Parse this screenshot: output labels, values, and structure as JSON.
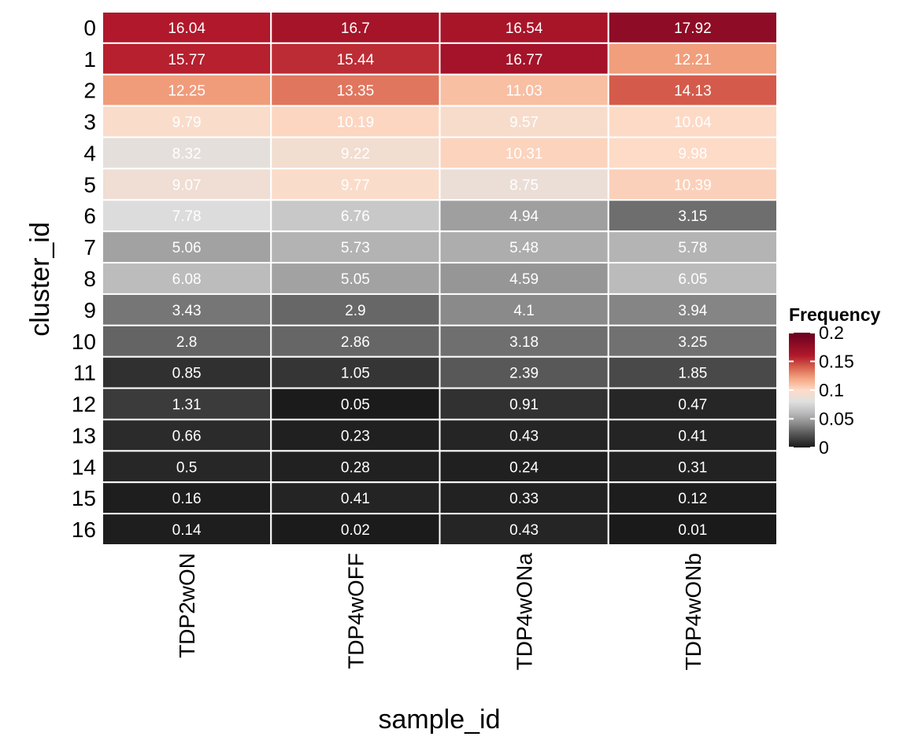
{
  "chart_data": {
    "type": "heatmap",
    "title": "",
    "xlabel": "sample_id",
    "ylabel": "cluster_id",
    "x_categories": [
      "TDP2wON",
      "TDP4wOFF",
      "TDP4wONa",
      "TDP4wONb"
    ],
    "y_categories": [
      "0",
      "1",
      "2",
      "3",
      "4",
      "5",
      "6",
      "7",
      "8",
      "9",
      "10",
      "11",
      "12",
      "13",
      "14",
      "15",
      "16"
    ],
    "cell_labels": [
      [
        "16.04",
        "16.7",
        "16.54",
        "17.92"
      ],
      [
        "15.77",
        "15.44",
        "16.77",
        "12.21"
      ],
      [
        "12.25",
        "13.35",
        "11.03",
        "14.13"
      ],
      [
        "9.79",
        "10.19",
        "9.57",
        "10.04"
      ],
      [
        "8.32",
        "9.22",
        "10.31",
        "9.98"
      ],
      [
        "9.07",
        "9.77",
        "8.75",
        "10.39"
      ],
      [
        "7.78",
        "6.76",
        "4.94",
        "3.15"
      ],
      [
        "5.06",
        "5.73",
        "5.48",
        "5.78"
      ],
      [
        "6.08",
        "5.05",
        "4.59",
        "6.05"
      ],
      [
        "3.43",
        "2.9",
        "4.1",
        "3.94"
      ],
      [
        "2.8",
        "2.86",
        "3.18",
        "3.25"
      ],
      [
        "0.85",
        "1.05",
        "2.39",
        "1.85"
      ],
      [
        "1.31",
        "0.05",
        "0.91",
        "0.47"
      ],
      [
        "0.66",
        "0.23",
        "0.43",
        "0.41"
      ],
      [
        "0.5",
        "0.28",
        "0.24",
        "0.31"
      ],
      [
        "0.16",
        "0.41",
        "0.33",
        "0.12"
      ],
      [
        "0.14",
        "0.02",
        "0.43",
        "0.01"
      ]
    ],
    "values": [
      [
        0.1604,
        0.167,
        0.1654,
        0.1792
      ],
      [
        0.1577,
        0.1544,
        0.1677,
        0.1221
      ],
      [
        0.1225,
        0.1335,
        0.1103,
        0.1413
      ],
      [
        0.0979,
        0.1019,
        0.0957,
        0.1004
      ],
      [
        0.0832,
        0.0922,
        0.1031,
        0.0998
      ],
      [
        0.0907,
        0.0977,
        0.0875,
        0.1039
      ],
      [
        0.0778,
        0.0676,
        0.0494,
        0.0315
      ],
      [
        0.0506,
        0.0573,
        0.0548,
        0.0578
      ],
      [
        0.0608,
        0.0505,
        0.0459,
        0.0605
      ],
      [
        0.0343,
        0.029,
        0.041,
        0.0394
      ],
      [
        0.028,
        0.0286,
        0.0318,
        0.0325
      ],
      [
        0.0085,
        0.0105,
        0.0239,
        0.0185
      ],
      [
        0.0131,
        0.0005,
        0.0091,
        0.0047
      ],
      [
        0.0066,
        0.0023,
        0.0043,
        0.0041
      ],
      [
        0.005,
        0.0028,
        0.0024,
        0.0031
      ],
      [
        0.0016,
        0.0041,
        0.0033,
        0.0012
      ],
      [
        0.0014,
        0.0002,
        0.0043,
        0.0001
      ]
    ],
    "legend": {
      "title": "Frequency",
      "position": "right",
      "ticks": [
        {
          "value": 0,
          "label": "0"
        },
        {
          "value": 0.05,
          "label": "0.05"
        },
        {
          "value": 0.1,
          "label": "0.1"
        },
        {
          "value": 0.15,
          "label": "0.15"
        },
        {
          "value": 0.2,
          "label": "0.2"
        }
      ]
    },
    "color_scale": {
      "domain": [
        0,
        0.2
      ],
      "stops": [
        {
          "at": 0.0,
          "color": "#1a1a1a"
        },
        {
          "at": 0.1,
          "color": "#4d4d4d"
        },
        {
          "at": 0.2,
          "color": "#878787"
        },
        {
          "at": 0.3,
          "color": "#bababa"
        },
        {
          "at": 0.4,
          "color": "#e0e0e0"
        },
        {
          "at": 0.5,
          "color": "#fddbc7"
        },
        {
          "at": 0.6,
          "color": "#f4a582"
        },
        {
          "at": 0.7,
          "color": "#d6604d"
        },
        {
          "at": 0.8,
          "color": "#b2182b"
        },
        {
          "at": 1.0,
          "color": "#67001f"
        }
      ]
    },
    "grid": false
  }
}
